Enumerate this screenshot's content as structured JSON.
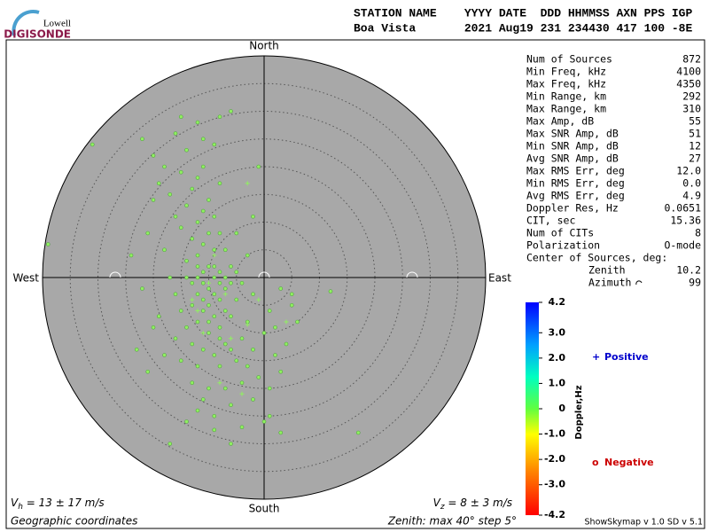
{
  "logo": {
    "top": "Lowell",
    "bottom": "DIGISONDE"
  },
  "header": {
    "line1": "STATION NAME    YYYY DATE  DDD HHMMSS AXN PPS IGP",
    "line2": "Boa Vista       2021 Aug19 231 234430 417 100 -8E"
  },
  "stats": [
    [
      "Num of Sources",
      "872"
    ],
    [
      "Min Freq, kHz",
      "4100"
    ],
    [
      "Max Freq, kHz",
      "4350"
    ],
    [
      "Min Range, km",
      "292"
    ],
    [
      "Max Range, km",
      "310"
    ],
    [
      "Max Amp, dB",
      "55"
    ],
    [
      "Max SNR Amp, dB",
      "51"
    ],
    [
      "Min SNR Amp, dB",
      "12"
    ],
    [
      "Avg SNR Amp, dB",
      "27"
    ],
    [
      "Max RMS Err, deg",
      "12.0"
    ],
    [
      "Min RMS Err, deg",
      "0.0"
    ],
    [
      "Avg RMS Err, deg",
      "4.9"
    ],
    [
      "Doppler Res, Hz",
      "0.0651"
    ],
    [
      "CIT, sec",
      "15.36"
    ],
    [
      "Num of CITs",
      "8"
    ],
    [
      "Polarization",
      "O-mode"
    ]
  ],
  "center": {
    "title": "Center of Sources, deg:",
    "zenith_label": "Zenith",
    "zenith": "10.2",
    "azimuth_label": "Azimuth",
    "azimuth": "99"
  },
  "footer": {
    "vh": [
      "V",
      "h",
      " = 13 ± 17 m/s"
    ],
    "vz": [
      "V",
      "z",
      " = 8 ± 3 m/s"
    ],
    "coords": "Geographic coordinates",
    "zenith": "Zenith: max 40°  step 5°",
    "version": "ShowSkymap v 1.0  SD v 5.1"
  },
  "chart_data": {
    "type": "skymap",
    "directions": {
      "north": "North",
      "south": "South",
      "east": "East",
      "west": "West"
    },
    "xlim": [
      -40,
      40
    ],
    "ylim": [
      -40,
      40
    ],
    "point_color": "#90f060",
    "series": [
      {
        "name": "Positive",
        "marker": "+",
        "color": "#0000cc",
        "x": [
          -10,
          -7,
          -12,
          -9,
          -11,
          -6,
          -1,
          -4,
          -3,
          -8,
          -13,
          4,
          -3
        ],
        "y": [
          -1,
          -3,
          -6,
          4,
          -10,
          -11,
          -4,
          -21,
          -8.5,
          -19,
          -4,
          -8,
          17
        ]
      },
      {
        "name": "Negative",
        "marker": "o",
        "color": "#cc0000",
        "x": [
          -10,
          -9,
          -11,
          -8,
          -12,
          -10,
          -9,
          -11,
          -7,
          -13,
          -10,
          -8,
          -12,
          -9,
          -14,
          -11,
          -10,
          -13,
          -8,
          -12,
          -15,
          -9,
          -11,
          -14,
          -16,
          -10,
          -13,
          -17,
          -12,
          -15,
          -18,
          -11,
          -8,
          -19,
          -20,
          -14,
          -9,
          -16,
          -22,
          -12,
          -6,
          -20,
          -21,
          -18,
          -17,
          -16,
          -15,
          -14,
          -12,
          -10,
          -8,
          -6,
          -5,
          -4,
          -6,
          -7,
          -5,
          -3,
          -2,
          -3,
          -4,
          -7,
          -9,
          -11,
          -13,
          -16,
          -12,
          -8,
          -5,
          -2,
          0,
          1,
          2,
          -1,
          -4,
          -7,
          -10,
          -13,
          -6,
          -2,
          1,
          3,
          4,
          2,
          -9,
          -12,
          -4,
          0,
          -9,
          -17,
          1,
          3,
          17,
          -6,
          -19,
          -22,
          -24,
          -18,
          -11,
          -15,
          -2,
          -1,
          -8,
          -31,
          -39,
          -11,
          -9,
          -7,
          -13,
          -14,
          -6,
          -5,
          -12,
          -10,
          -8,
          -6,
          -3,
          5,
          3,
          12,
          6,
          -20,
          -23,
          -21,
          -15,
          -11,
          -14,
          5,
          -9,
          -12,
          -11,
          -7,
          -8
        ],
        "y": [
          -2,
          -3,
          -1,
          -4,
          -3,
          -5,
          0,
          1,
          -2,
          -1,
          2,
          1,
          4,
          5,
          3,
          6,
          8,
          7,
          8,
          10,
          9,
          11,
          12,
          13,
          11,
          14,
          16,
          15,
          18,
          19,
          20,
          20,
          17,
          17,
          22,
          23,
          24,
          26,
          25,
          28,
          30,
          14,
          8,
          5,
          0,
          -3,
          -6,
          -9,
          -8,
          -10,
          -9,
          -7,
          -4,
          -1,
          2,
          5,
          8,
          4,
          -3,
          -8,
          -11,
          -12,
          -14,
          -13,
          -12,
          -11,
          -16,
          -16,
          -15,
          -13,
          -10,
          -6,
          -14,
          -18,
          -19,
          -20,
          -20,
          -19,
          -23,
          -22,
          -20,
          -17,
          -12,
          -9,
          -25,
          -24,
          -27,
          -26,
          -27.5,
          -30,
          -25,
          -28,
          -28,
          -30,
          -7,
          -2,
          4,
          -14,
          25,
          29,
          11,
          20,
          29,
          24,
          6,
          -6,
          -7,
          -6,
          -5,
          0,
          -1,
          1,
          0,
          -8,
          -11,
          -13,
          -16,
          -3,
          -2,
          -2.5,
          -8,
          -9,
          -13,
          -17,
          -15,
          -22,
          -26,
          -5,
          2,
          2,
          -4,
          0,
          -1
        ]
      }
    ],
    "colorbar": {
      "label": "Doppler,Hz",
      "lim": [
        4.2,
        -4.2
      ],
      "ticks": [
        4.2,
        {
          "value": 3,
          "label": "3.0"
        },
        {
          "value": 2,
          "label": "2.0"
        },
        {
          "value": 1,
          "label": "1.0"
        },
        0,
        {
          "value": -1,
          "label": "-1.0"
        },
        {
          "value": -2,
          "label": "-2.0"
        },
        {
          "value": -3,
          "label": "-3.0"
        },
        -4.2
      ]
    }
  }
}
